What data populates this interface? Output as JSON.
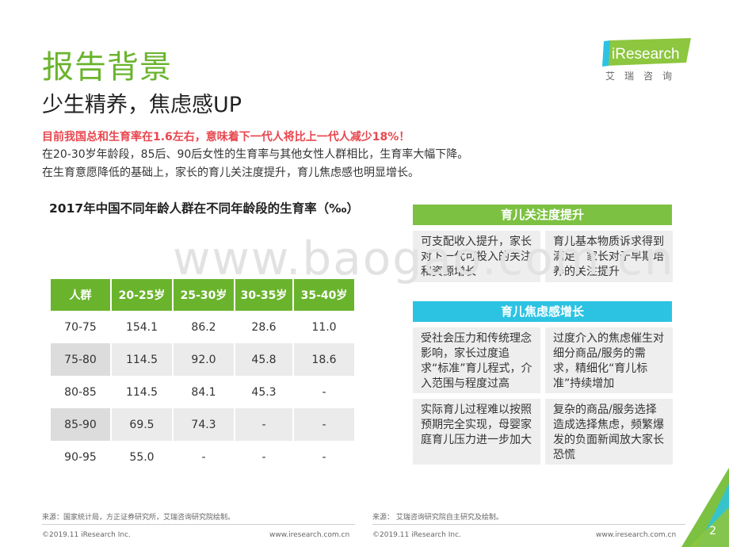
{
  "header": {
    "title": "报告背景",
    "subtitle": "少生精养，焦虑感UP"
  },
  "logo": {
    "brand": "iResearch",
    "cn": "艾瑞咨询"
  },
  "intro": {
    "highlight": "目前我国总和生育率在1.6左右，意味着下一代人将比上一代人减少18%！",
    "line2": "在20-30岁年龄段，85后、90后女性的生育率与其他女性人群相比，生育率大幅下降。",
    "line3": "在生育意愿降低的基础上，家长的育儿关注度提升，育儿焦虑感也明显增长。"
  },
  "watermark": "www.baogao.com.cn",
  "table": {
    "title": "2017年中国不同年龄人群在不同年龄段的生育率（‰）",
    "headers": [
      "人群",
      "20-25岁",
      "25-30岁",
      "30-35岁",
      "35-40岁"
    ],
    "rows": [
      [
        "70-75",
        "154.1",
        "86.2",
        "28.6",
        "11.0"
      ],
      [
        "75-80",
        "114.5",
        "92.0",
        "45.8",
        "18.6"
      ],
      [
        "80-85",
        "114.5",
        "84.1",
        "45.3",
        "-"
      ],
      [
        "85-90",
        "69.5",
        "74.3",
        "-",
        "-"
      ],
      [
        "90-95",
        "55.0",
        "-",
        "-",
        "-"
      ]
    ]
  },
  "panel1": {
    "heading": "育儿关注度提升",
    "boxes": [
      "可支配收入提升，家长对下一代可投入的关注和资源增长",
      "育儿基本物质诉求得到满足，家长对于早期培养的关注提升"
    ]
  },
  "panel2": {
    "heading": "育儿焦虑感增长",
    "boxes": [
      "受社会压力和传统理念影响，家长过度追求“标准”育儿程式，介入范围与程度过高",
      "过度介入的焦虑催生对细分商品/服务的需求，精细化“育儿标准”持续增加",
      "实际育儿过程难以按照预期完全实现，母婴家庭育儿压力进一步加大",
      "复杂的商品/服务选择造成选择焦虑，频繁爆发的负面新闻放大家长恐慌"
    ]
  },
  "footer": {
    "source_left": "来源：国家统计局，方正证券研究所，艾瑞咨询研究院绘制。",
    "source_right": "来源：  艾瑞咨询研究院自主研究及绘制。",
    "copyright_left": "©2019.11 iResearch Inc.",
    "url_left": "www.iresearch.com.cn",
    "copyright_right": "©2019.11 iResearch Inc.",
    "url_right": "www.iresearch.com.cn",
    "page": "2"
  }
}
